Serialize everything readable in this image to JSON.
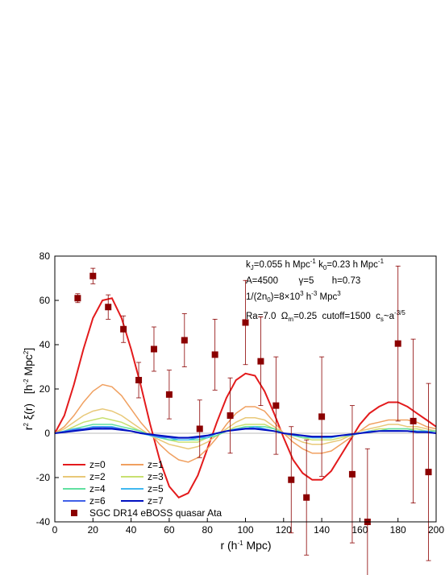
{
  "chart_data": {
    "type": "line",
    "xlabel": [
      "r (h",
      "-1",
      " Mpc)"
    ],
    "ylabel": [
      "r",
      "2",
      " ξ(r)   [h",
      "-2",
      " Mpc",
      "2",
      "]"
    ],
    "annotations": [
      [
        "k",
        "J",
        "=0.055 h Mpc",
        "-1",
        "   k",
        "0",
        "=0.23 h Mpc",
        "-1"
      ],
      [
        "A=4500        γ=5       h=0.73"
      ],
      [
        "1/(2n",
        "0",
        ")=8×10",
        "3",
        " h",
        "-3",
        " Mpc",
        "3"
      ],
      [
        "Ra=7.0  Ω",
        "m",
        "=0.25  cutoff=1500  c",
        "s",
        "~a",
        "-3/5"
      ]
    ],
    "xlim": [
      0,
      200
    ],
    "xticks": [
      0,
      20,
      40,
      60,
      80,
      100,
      120,
      140,
      160,
      180,
      200
    ],
    "ylim": [
      -40,
      80
    ],
    "yticks": [
      -40,
      -20,
      0,
      20,
      40,
      60,
      80
    ],
    "x": [
      0,
      5,
      10,
      15,
      20,
      25,
      30,
      35,
      40,
      45,
      50,
      55,
      60,
      65,
      70,
      75,
      80,
      85,
      90,
      95,
      100,
      105,
      110,
      115,
      120,
      125,
      130,
      135,
      140,
      145,
      150,
      155,
      160,
      165,
      170,
      175,
      180,
      185,
      190,
      195,
      200
    ],
    "series": [
      {
        "name": "z=0",
        "color": "#e31a1c",
        "values": [
          0,
          8,
          22,
          38,
          52,
          60,
          61,
          52,
          38,
          22,
          4,
          -12,
          -24,
          -29,
          -27,
          -19,
          -7,
          5,
          16,
          24,
          27,
          26,
          19,
          9,
          -2,
          -12,
          -18,
          -21,
          -21,
          -17,
          -10,
          -3,
          4,
          9,
          12,
          14,
          14,
          12,
          9,
          6,
          3
        ]
      },
      {
        "name": "z=1",
        "color": "#f0a060",
        "values": [
          0,
          3,
          8,
          14,
          19,
          22,
          21,
          17,
          11,
          5,
          0,
          -5,
          -9,
          -12,
          -13,
          -11,
          -7,
          -2,
          4,
          9,
          12,
          12,
          10,
          5,
          0,
          -4,
          -7,
          -9,
          -9,
          -8,
          -5,
          -2,
          1,
          4,
          5,
          6,
          6,
          6,
          5,
          3,
          2
        ]
      },
      {
        "name": "z=2",
        "color": "#e8c878",
        "values": [
          0,
          2,
          5,
          8,
          10,
          11,
          10,
          8,
          5,
          2,
          -1,
          -3,
          -5,
          -6,
          -7,
          -6,
          -4,
          -1,
          2,
          5,
          7,
          7,
          6,
          3,
          0,
          -2,
          -4,
          -5,
          -5,
          -4,
          -3,
          -1,
          1,
          2,
          3,
          4,
          4,
          3,
          3,
          2,
          1
        ]
      },
      {
        "name": "z=3",
        "color": "#c8e070",
        "values": [
          0,
          1,
          3,
          5,
          6,
          7,
          6,
          5,
          3,
          1,
          -1,
          -2,
          -3,
          -4,
          -4,
          -4,
          -2,
          -1,
          1,
          3,
          4,
          4,
          4,
          2,
          0,
          -1,
          -2,
          -3,
          -3,
          -3,
          -2,
          -1,
          0,
          1,
          2,
          2,
          2,
          2,
          2,
          1,
          1
        ]
      },
      {
        "name": "z=4",
        "color": "#60e0a0",
        "values": [
          0,
          1,
          2,
          3,
          4,
          4,
          4,
          3,
          2,
          1,
          -1,
          -2,
          -3,
          -3,
          -3,
          -3,
          -2,
          -1,
          1,
          2,
          3,
          3,
          3,
          2,
          0,
          -1,
          -2,
          -2,
          -2,
          -2,
          -1,
          -1,
          0,
          1,
          1,
          2,
          2,
          2,
          1,
          1,
          1
        ]
      },
      {
        "name": "z=5",
        "color": "#40b8f0",
        "values": [
          0,
          1,
          2,
          2,
          3,
          3,
          3,
          2,
          1,
          0,
          -1,
          -2,
          -2,
          -3,
          -3,
          -2,
          -2,
          0,
          1,
          2,
          2,
          3,
          2,
          1,
          0,
          -1,
          -1,
          -2,
          -2,
          -2,
          -1,
          -1,
          0,
          1,
          1,
          1,
          1,
          1,
          1,
          1,
          0
        ]
      },
      {
        "name": "z=6",
        "color": "#4060e8",
        "values": [
          0,
          0.7,
          1.5,
          2,
          2.5,
          2.7,
          2.5,
          2,
          1,
          0.3,
          -0.7,
          -1.5,
          -2,
          -2.2,
          -2.2,
          -2,
          -1.2,
          0,
          1,
          1.7,
          2.3,
          2.3,
          1.8,
          1,
          0,
          -0.7,
          -1.2,
          -1.7,
          -1.7,
          -1.5,
          -1,
          -0.5,
          0,
          0.6,
          1,
          1.2,
          1.2,
          1,
          0.7,
          0.5,
          0.2
        ]
      },
      {
        "name": "z=7",
        "color": "#0010c0",
        "values": [
          0,
          0.5,
          1,
          1.5,
          2,
          2,
          2,
          1.5,
          1,
          0,
          -0.5,
          -1,
          -1.5,
          -2,
          -2,
          -1.5,
          -1,
          0,
          1,
          1.5,
          2,
          2,
          1.5,
          1,
          0,
          -0.5,
          -1,
          -1.5,
          -1.5,
          -1.5,
          -1,
          -0.5,
          0,
          0.5,
          1,
          1,
          1,
          1,
          0.5,
          0.5,
          0
        ]
      },
      {
        "name": "SGC DR14 eBOSS quasar Ata",
        "type": "scatter",
        "color": "#8b0000",
        "x": [
          12,
          20,
          28,
          36,
          44,
          52,
          60,
          68,
          76,
          84,
          92,
          100,
          108,
          116,
          124,
          132,
          140,
          156,
          164,
          180,
          188,
          196
        ],
        "values": [
          61,
          71,
          57,
          47,
          24,
          38,
          17.5,
          42,
          2,
          35.5,
          8,
          50,
          32.5,
          12.5,
          -21,
          -29,
          7.5,
          -18.5,
          -40,
          40.5,
          5.5,
          -17.5
        ],
        "errors": [
          2,
          3.5,
          5.5,
          6,
          8,
          10,
          11,
          12,
          13,
          16,
          17,
          19,
          20,
          22,
          24,
          26,
          27,
          31,
          33,
          35,
          37,
          40
        ]
      }
    ]
  }
}
